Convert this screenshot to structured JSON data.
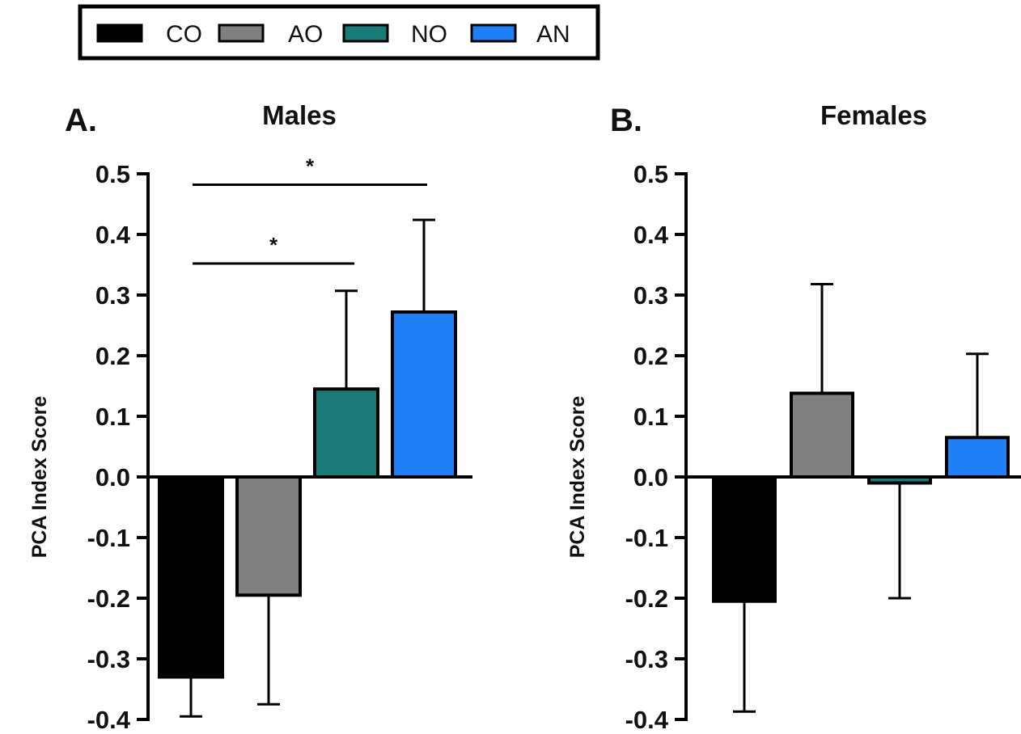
{
  "legend": {
    "entries": [
      {
        "label": "CO",
        "color": "#000000"
      },
      {
        "label": "AO",
        "color": "#808080"
      },
      {
        "label": "NO",
        "color": "#1a7a78"
      },
      {
        "label": "AN",
        "color": "#1e7ff7"
      }
    ],
    "placement": "top-left"
  },
  "chart_data": [
    {
      "type": "bar",
      "panel": "A.",
      "title": "Males",
      "ylabel": "PCA Index Score",
      "xlabel": "",
      "ylim": [
        -0.4,
        0.5
      ],
      "yticks": [
        "0.5",
        "0.4",
        "0.3",
        "0.2",
        "0.1",
        "0.0",
        "-0.1",
        "-0.2",
        "-0.3",
        "-0.4"
      ],
      "grid": false,
      "categories": [
        "CO",
        "AO",
        "NO",
        "AN"
      ],
      "values": [
        -0.33,
        -0.195,
        0.145,
        0.272
      ],
      "error": [
        0.065,
        0.18,
        0.162,
        0.152
      ],
      "colors": [
        "#000000",
        "#808080",
        "#1a7a78",
        "#1e7ff7"
      ],
      "significance": [
        {
          "from": "CO",
          "to": "NO",
          "label": "*",
          "y": 0.352
        },
        {
          "from": "CO",
          "to": "AN",
          "label": "*",
          "y": 0.482
        }
      ]
    },
    {
      "type": "bar",
      "panel": "B.",
      "title": "Females",
      "ylabel": "PCA Index Score",
      "xlabel": "",
      "ylim": [
        -0.4,
        0.5
      ],
      "yticks": [
        "0.5",
        "0.4",
        "0.3",
        "0.2",
        "0.1",
        "0.0",
        "-0.1",
        "-0.2",
        "-0.3",
        "-0.4"
      ],
      "grid": false,
      "categories": [
        "CO",
        "AO",
        "NO",
        "AN"
      ],
      "values": [
        -0.205,
        0.138,
        -0.01,
        0.065
      ],
      "error": [
        0.182,
        0.18,
        0.19,
        0.138
      ],
      "colors": [
        "#000000",
        "#808080",
        "#1a7a78",
        "#1e7ff7"
      ],
      "significance": []
    }
  ]
}
